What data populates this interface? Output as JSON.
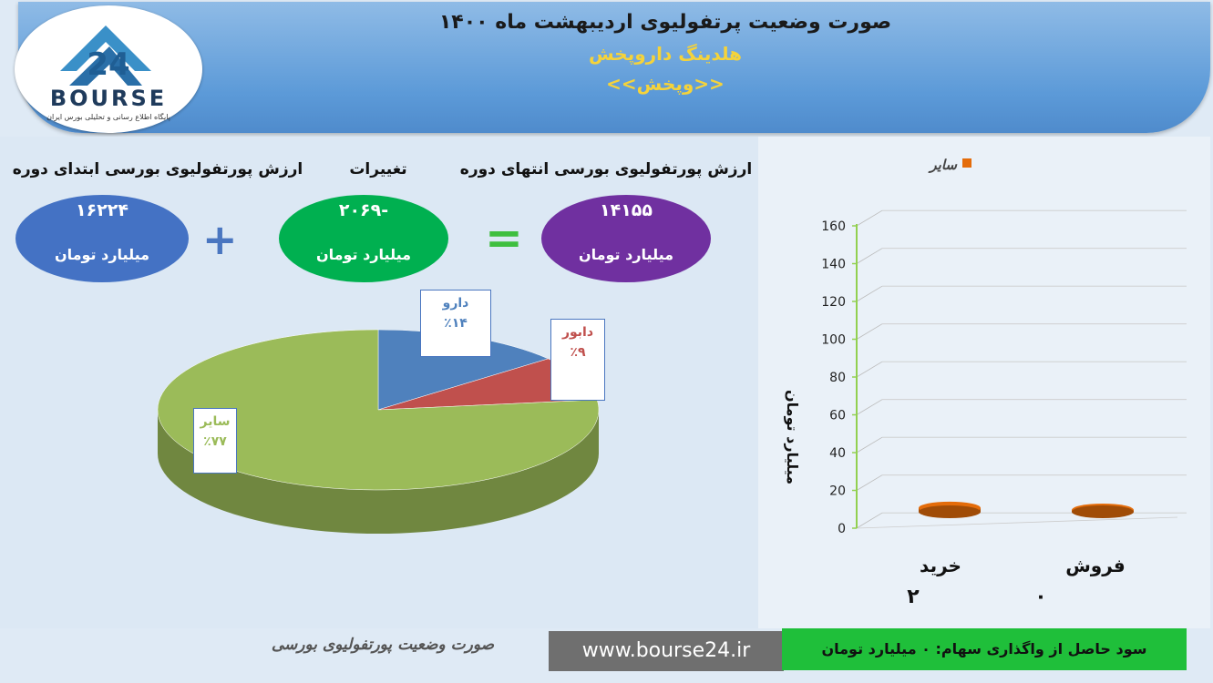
{
  "header": {
    "title": "صورت وضعیت پرتفولیوی اردیبهشت ماه ۱۴۰۰",
    "subtitle": "هلدینگ داروپخش",
    "symbol": "<<وپخش>>"
  },
  "logo": {
    "text": "BOURSE",
    "subtitle": "پایگاه اطلاع رسانی و تحلیلی بورس ایران",
    "number": "24"
  },
  "summary": {
    "start_label": "ارزش پورتفولیوی بورسی ابتدای دوره",
    "start_value": "۱۶۲۲۴",
    "change_label": "تغییرات",
    "change_value": "-۲۰۶۹",
    "end_label": "ارزش پورتفولیوی بورسی انتهای دوره",
    "end_value": "۱۴۱۵۵",
    "unit": "میلیارد تومان",
    "colors": {
      "start": "#4472c4",
      "change": "#00b050",
      "end": "#7030a0"
    }
  },
  "chart_data": [
    {
      "type": "pie",
      "slices": [
        {
          "name": "دارو",
          "label": "٪۱۴",
          "value": 14,
          "color": "#4f81bd"
        },
        {
          "name": "دابور",
          "label": "٪۹",
          "value": 9,
          "color": "#c0504d"
        },
        {
          "name": "سایر",
          "label": "٪۷۷",
          "value": 77,
          "color": "#9bbb59"
        }
      ]
    },
    {
      "type": "bar",
      "legend": {
        "entries": [
          "سایر"
        ],
        "placement": "top"
      },
      "categories": [
        "خرید",
        "فروش"
      ],
      "series": [
        {
          "name": "سایر",
          "values": [
            2,
            0
          ],
          "color": "#e46c0a"
        }
      ],
      "data_labels": [
        "۲",
        "۰"
      ],
      "ylabel": "میلیارد تومان",
      "ylim": [
        0,
        160
      ],
      "yticks": [
        0,
        20,
        40,
        60,
        80,
        100,
        120,
        140,
        160
      ],
      "grid": true
    }
  ],
  "footer": {
    "title": "صورت وضعیت پورتفولیوی بورسی",
    "url": "www.bourse24.ir",
    "profit": "سود حاصل از واگذاری سهام: ۰ میلیارد تومان"
  }
}
